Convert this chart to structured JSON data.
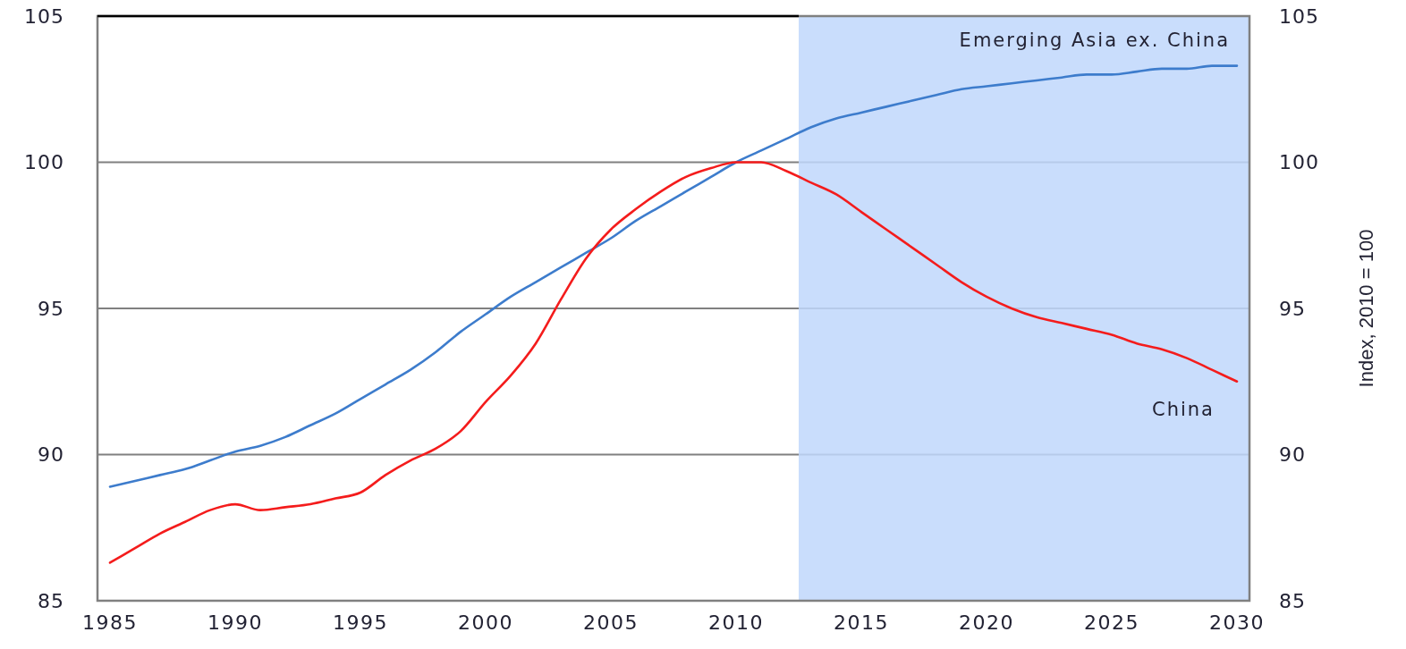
{
  "chart_data": {
    "type": "line",
    "x": [
      1985,
      1986,
      1987,
      1988,
      1989,
      1990,
      1991,
      1992,
      1993,
      1994,
      1995,
      1996,
      1997,
      1998,
      1999,
      2000,
      2001,
      2002,
      2003,
      2004,
      2005,
      2006,
      2007,
      2008,
      2009,
      2010,
      2011,
      2012,
      2013,
      2014,
      2015,
      2016,
      2017,
      2018,
      2019,
      2020,
      2021,
      2022,
      2023,
      2024,
      2025,
      2026,
      2027,
      2028,
      2029,
      2030
    ],
    "xlim": [
      1984.5,
      2030.5
    ],
    "xticks": [
      1985,
      1990,
      1995,
      2000,
      2005,
      2010,
      2015,
      2020,
      2025,
      2030
    ],
    "ylim": [
      85,
      105
    ],
    "yticks": [
      85,
      90,
      95,
      100,
      105
    ],
    "y2lim": [
      85,
      105
    ],
    "y2ticks": [
      85,
      90,
      95,
      100,
      105
    ],
    "y2label": "Index, 2010 = 100",
    "grid": "y",
    "bands": [
      {
        "axis": "x",
        "from": 2012.5,
        "to": 2030.5,
        "color": "#bfd7fb"
      }
    ],
    "series": [
      {
        "name": "Emerging Asia ex. China",
        "color": "#3d7ccc",
        "values": [
          88.9,
          89.1,
          89.3,
          89.5,
          89.8,
          90.1,
          90.3,
          90.6,
          91.0,
          91.4,
          91.9,
          92.4,
          92.9,
          93.5,
          94.2,
          94.8,
          95.4,
          95.9,
          96.4,
          96.9,
          97.4,
          98.0,
          98.5,
          99.0,
          99.5,
          100.0,
          100.4,
          100.8,
          101.2,
          101.5,
          101.7,
          101.9,
          102.1,
          102.3,
          102.5,
          102.6,
          102.7,
          102.8,
          102.9,
          103.0,
          103.0,
          103.1,
          103.2,
          103.2,
          103.3,
          103.3
        ]
      },
      {
        "name": "China",
        "color": "#f41c1c",
        "values": [
          86.3,
          86.8,
          87.3,
          87.7,
          88.1,
          88.3,
          88.1,
          88.2,
          88.3,
          88.5,
          88.7,
          89.3,
          89.8,
          90.2,
          90.8,
          91.8,
          92.7,
          93.8,
          95.3,
          96.7,
          97.7,
          98.4,
          99.0,
          99.5,
          99.8,
          100.0,
          100.0,
          99.7,
          99.3,
          98.9,
          98.3,
          97.7,
          97.1,
          96.5,
          95.9,
          95.4,
          95.0,
          94.7,
          94.5,
          94.3,
          94.1,
          93.8,
          93.6,
          93.3,
          92.9,
          92.5
        ]
      }
    ]
  }
}
